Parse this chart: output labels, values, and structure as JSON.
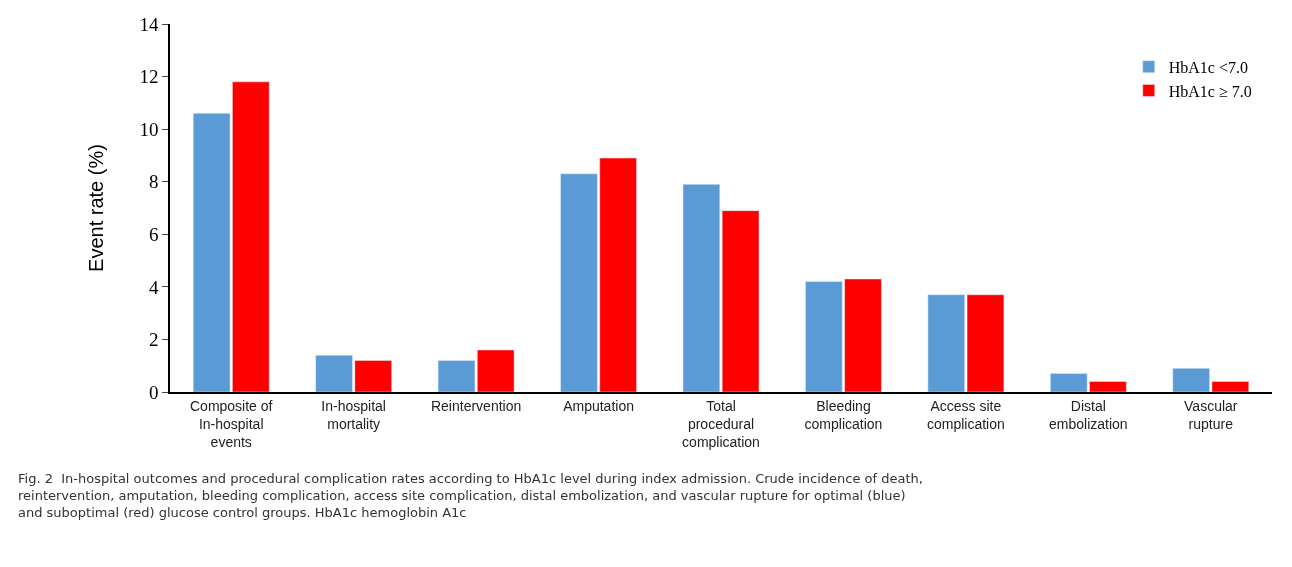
{
  "chart_data": {
    "type": "bar",
    "ylabel": "Event rate (%)",
    "categories": [
      "Composite of In-hospital events",
      "In-hospital mortality",
      "Reintervention",
      "Amputation",
      "Total procedural complication",
      "Bleeding complication",
      "Access site complication",
      "Distal embolization",
      "Vascular rupture"
    ],
    "series": [
      {
        "name": "HbA1c <7.0",
        "color": "#5b9bd5",
        "values": [
          10.6,
          1.4,
          1.2,
          8.3,
          7.9,
          4.2,
          3.7,
          0.7,
          0.9
        ]
      },
      {
        "name": "HbA1c ≥ 7.0",
        "color": "#ff0000",
        "values": [
          11.8,
          1.2,
          1.6,
          8.9,
          6.9,
          4.3,
          3.7,
          0.4,
          0.4
        ]
      }
    ],
    "ylim": [
      0,
      14
    ],
    "yticks": [
      0,
      2,
      4,
      6,
      8,
      10,
      12,
      14
    ],
    "legend": "top right",
    "annotations": [
      "Fig. 2  In-hospital outcomes and procedural complication rates according to HbA1c level during index admission. Crude incidence of death, reintervention, amputation, bleeding complication, access site complication, distal embolization, and vascular rupture for optimal (blue) and suboptimal (red) glucose control groups. HbA1c hemoglobin A1c"
    ]
  }
}
